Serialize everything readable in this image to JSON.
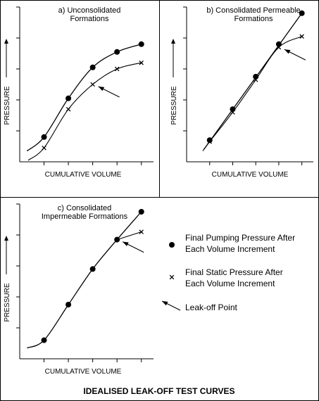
{
  "figure_title": "IDEALISED LEAK-OFF TEST CURVES",
  "legend": {
    "pumping": "Final Pumping Pressure After Each Volume Increment",
    "pumping_lines": [
      "Final Pumping Pressure After",
      "Each Volume Increment"
    ],
    "static": "Final Static Pressure After Each Volume Increment",
    "static_lines": [
      "Final Static Pressure After",
      "Each Volume Increment"
    ],
    "leakoff": "Leak-off Point"
  },
  "chart_data": [
    {
      "type": "line",
      "title_lines": [
        "a) Unconsolidated",
        "Formations"
      ],
      "xlabel": "CUMULATIVE VOLUME",
      "ylabel": "PRESSURE",
      "xlim": [
        0,
        5.5
      ],
      "ylim": [
        0,
        5
      ],
      "xticks": [
        1,
        2,
        3,
        4,
        5
      ],
      "yticks": [
        1,
        2,
        3,
        4,
        5
      ],
      "grid": false,
      "series": [
        {
          "key": "pumping",
          "marker": "dot",
          "x": [
            1,
            2,
            3,
            4,
            5
          ],
          "y": [
            0.8,
            2.05,
            3.05,
            3.55,
            3.8
          ]
        },
        {
          "key": "static",
          "marker": "x",
          "x": [
            1,
            2,
            3,
            4,
            5
          ],
          "y": [
            0.45,
            1.7,
            2.5,
            3.0,
            3.2
          ]
        }
      ],
      "pumping_curve": {
        "x": [
          0.3,
          1,
          2,
          3,
          4,
          5
        ],
        "y": [
          0.35,
          0.8,
          2.05,
          3.05,
          3.55,
          3.8
        ]
      },
      "static_curve": {
        "x": [
          0.35,
          1,
          2,
          3,
          4,
          5
        ],
        "y": [
          0.05,
          0.45,
          1.7,
          2.5,
          3.0,
          3.2
        ]
      },
      "leakoff_point": {
        "x": 3,
        "y": 2.5
      }
    },
    {
      "type": "line",
      "title_lines": [
        "b) Consolidated Permeable",
        "Formations"
      ],
      "xlabel": "CUMULATIVE VOLUME",
      "ylabel": "PRESSURE",
      "xlim": [
        0,
        5.5
      ],
      "ylim": [
        0,
        5
      ],
      "xticks": [
        1,
        2,
        3,
        4,
        5
      ],
      "yticks": [
        1,
        2,
        3,
        4,
        5
      ],
      "grid": false,
      "series": [
        {
          "key": "pumping",
          "marker": "dot",
          "x": [
            1,
            2,
            3,
            4,
            5
          ],
          "y": [
            0.7,
            1.7,
            2.75,
            3.8,
            4.8
          ]
        },
        {
          "key": "static",
          "marker": "x",
          "x": [
            1,
            2,
            3,
            4,
            5
          ],
          "y": [
            0.65,
            1.6,
            2.65,
            3.7,
            4.05
          ]
        }
      ],
      "pumping_curve": {
        "x": [
          0.75,
          5
        ],
        "y": [
          0.4,
          4.8
        ]
      },
      "static_curve": {
        "x": [
          0.7,
          1,
          2,
          3,
          4,
          5
        ],
        "y": [
          0.35,
          0.65,
          1.6,
          2.65,
          3.7,
          4.05
        ]
      },
      "leakoff_point": {
        "x": 4,
        "y": 3.7
      }
    },
    {
      "type": "line",
      "title_lines": [
        "c) Consolidated",
        "Impermeable Formations"
      ],
      "xlabel": "CUMULATIVE VOLUME",
      "ylabel": "PRESSURE",
      "xlim": [
        0,
        5.5
      ],
      "ylim": [
        0,
        5
      ],
      "xticks": [
        1,
        2,
        3,
        4,
        5
      ],
      "yticks": [
        1,
        2,
        3,
        4,
        5
      ],
      "grid": false,
      "series": [
        {
          "key": "pumping",
          "marker": "dot",
          "x": [
            1,
            2,
            3,
            4,
            5
          ],
          "y": [
            0.6,
            1.75,
            2.9,
            3.85,
            4.75
          ]
        },
        {
          "key": "static",
          "marker": "x",
          "x": [
            5
          ],
          "y": [
            4.1
          ]
        }
      ],
      "pumping_curve": {
        "x": [
          0.3,
          1,
          2,
          3,
          4,
          5
        ],
        "y": [
          0.35,
          0.6,
          1.75,
          2.9,
          3.85,
          4.75
        ]
      },
      "static_curve": {
        "x": [
          4,
          5
        ],
        "y": [
          3.85,
          4.1
        ]
      },
      "leakoff_point": {
        "x": 4,
        "y": 3.85
      }
    }
  ]
}
